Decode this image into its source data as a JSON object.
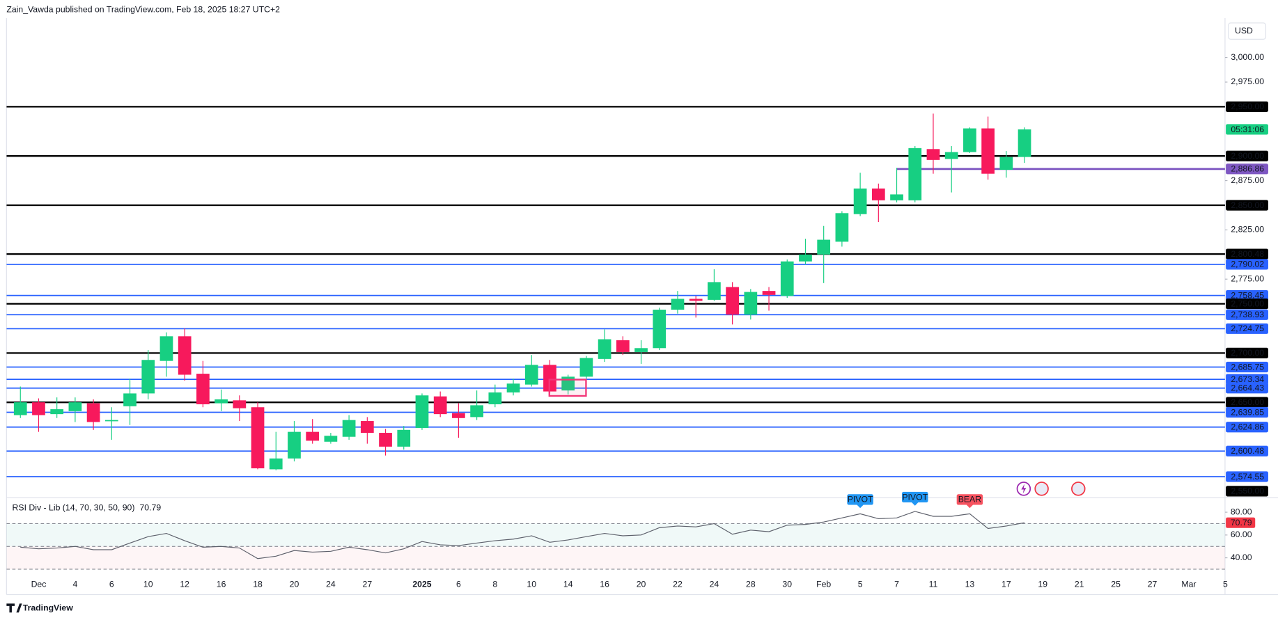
{
  "chart_data": {
    "type": "candlestick",
    "header": "Zain_Vawda published on TradingView.com, Feb 18, 2025 18:27 UTC+2",
    "currency": "USD",
    "brand": "TradingView",
    "countdown": "05:31:06",
    "up_color": "#17cf82",
    "down_color": "#f7195c",
    "categories": [
      null,
      "Dec",
      null,
      "4",
      null,
      "6",
      null,
      "10",
      null,
      "12",
      null,
      "16",
      null,
      "18",
      null,
      "20",
      null,
      "24",
      null,
      "27",
      null,
      null,
      "2025",
      null,
      "6",
      null,
      "8",
      null,
      "10",
      null,
      "14",
      null,
      "16",
      null,
      "20",
      null,
      "22",
      null,
      "24",
      null,
      "28",
      null,
      "30",
      null,
      "Feb",
      null,
      "5",
      null,
      "7",
      null,
      "11",
      null,
      "13",
      null,
      "17",
      null,
      "19",
      null,
      "21",
      null,
      "25",
      null,
      "27",
      null,
      "Mar",
      null,
      "5"
    ],
    "open": [
      2637,
      2650,
      2638,
      2641,
      2649,
      2631,
      2646,
      2659,
      2692,
      2717,
      2679,
      2649,
      2652,
      2645,
      2582,
      2593,
      2620,
      2610,
      2615,
      2631,
      2619,
      2605,
      2624,
      2656,
      2639,
      2635,
      2648,
      2660,
      2668,
      2688,
      2662,
      2676,
      2694,
      2713,
      2701,
      2705,
      2744,
      2755,
      2754,
      2767,
      2739,
      2763,
      2758,
      2793,
      2800,
      2813,
      2841,
      2867,
      2855,
      2855,
      2907,
      2897,
      2904,
      2928,
      2886,
      2899,
      null,
      null,
      null,
      null,
      null,
      null,
      null,
      null,
      null,
      null,
      null
    ],
    "high": [
      2666,
      2654,
      2655,
      2655,
      2653,
      2645,
      2674,
      2703,
      2721,
      2725,
      2692,
      2663,
      2657,
      2650,
      2620,
      2631,
      2633,
      2619,
      2637,
      2635,
      2623,
      2626,
      2659,
      2661,
      2649,
      2662,
      2668,
      2674,
      2698,
      2693,
      2678,
      2697,
      2724,
      2717,
      2713,
      2746,
      2763,
      2758,
      2785,
      2772,
      2765,
      2767,
      2795,
      2816,
      2829,
      2844,
      2883,
      2872,
      2888,
      2910,
      2943,
      2910,
      2929,
      2940,
      2905,
      2929,
      null,
      null,
      null,
      null,
      null,
      null,
      null,
      null,
      null,
      null,
      null
    ],
    "low": [
      2634,
      2620,
      2634,
      2630,
      2622,
      2612,
      2627,
      2653,
      2676,
      2672,
      2645,
      2641,
      2631,
      2582,
      2581,
      2590,
      2608,
      2608,
      2612,
      2608,
      2596,
      2602,
      2622,
      2635,
      2614,
      2632,
      2645,
      2657,
      2666,
      2659,
      2658,
      2674,
      2691,
      2698,
      2689,
      2703,
      2740,
      2736,
      2753,
      2729,
      2734,
      2743,
      2756,
      2790,
      2771,
      2808,
      2839,
      2833,
      2853,
      2853,
      2882,
      2863,
      2903,
      2876,
      2878,
      2893,
      null,
      null,
      null,
      null,
      null,
      null,
      null,
      null,
      null,
      null,
      null
    ],
    "close": [
      2650,
      2637,
      2643,
      2650,
      2630,
      2632,
      2659,
      2693,
      2717,
      2678,
      2648,
      2653,
      2644,
      2583,
      2593,
      2620,
      2611,
      2616,
      2632,
      2619,
      2605,
      2622,
      2657,
      2638,
      2634,
      2647,
      2660,
      2669,
      2688,
      2661,
      2676,
      2695,
      2714,
      2701,
      2705,
      2744,
      2755,
      2753,
      2772,
      2739,
      2762,
      2759,
      2793,
      2800,
      2815,
      2842,
      2867,
      2855,
      2861,
      2908,
      2896,
      2904,
      2928,
      2882,
      2899,
      2927,
      null,
      null,
      null,
      null,
      null,
      null,
      null,
      null,
      null,
      null,
      null
    ],
    "ylim": [
      2554,
      3040
    ],
    "yticks": [
      {
        "value": 3000,
        "label": "3,000.00"
      },
      {
        "value": 2975,
        "label": "2,975.00"
      },
      {
        "value": 2875,
        "label": "2,875.00"
      },
      {
        "value": 2825,
        "label": "2,825.00"
      },
      {
        "value": 2775,
        "label": "2,775.00"
      }
    ],
    "grid": false,
    "levels": [
      {
        "value": 2950,
        "label": "2,950.00",
        "color": "#000000"
      },
      {
        "value": 2900,
        "label": "2,900.00",
        "color": "#000000"
      },
      {
        "value": 2886.86,
        "label": "2,886.86",
        "color": "#7e57c2"
      },
      {
        "value": 2850,
        "label": "2,850.00",
        "color": "#000000"
      },
      {
        "value": 2800.48,
        "label": "2,800.48",
        "color": "#000000"
      },
      {
        "value": 2790.02,
        "label": "2,790.02",
        "color": "#2962ff"
      },
      {
        "value": 2758.45,
        "label": "2,758.45",
        "color": "#2962ff"
      },
      {
        "value": 2750,
        "label": "2,750.00",
        "color": "#000000"
      },
      {
        "value": 2738.93,
        "label": "2,738.93",
        "color": "#2962ff"
      },
      {
        "value": 2724.75,
        "label": "2,724.75",
        "color": "#2962ff"
      },
      {
        "value": 2700,
        "label": "2,700.00",
        "color": "#000000"
      },
      {
        "value": 2685.75,
        "label": "2,685.75",
        "color": "#2962ff"
      },
      {
        "value": 2673.34,
        "label": "2,673.34",
        "color": "#2962ff"
      },
      {
        "value": 2664.43,
        "label": "2,664.43",
        "color": "#2962ff"
      },
      {
        "value": 2650,
        "label": "2,650.00",
        "color": "#000000"
      },
      {
        "value": 2639.85,
        "label": "2,639.85",
        "color": "#2962ff"
      },
      {
        "value": 2624.86,
        "label": "2,624.86",
        "color": "#2962ff"
      },
      {
        "value": 2600.48,
        "label": "2,600.48",
        "color": "#2962ff"
      },
      {
        "value": 2574.55,
        "label": "2,574.55",
        "color": "#2962ff"
      },
      {
        "value": 2550,
        "label": "2,550.00",
        "color": "#000000"
      }
    ],
    "rsi": {
      "title": "RSI Div - Lib (14, 70, 30, 50, 90)",
      "value_label": "70.79",
      "color": "#5d606b",
      "label_color": "#f23645",
      "values": [
        49.3,
        47.9,
        48.6,
        50,
        47.1,
        47.1,
        52.9,
        58.6,
        61.4,
        55,
        49.3,
        50,
        48.6,
        39.3,
        41.4,
        46.4,
        45,
        45.7,
        49.3,
        47.1,
        44.3,
        47.9,
        54.3,
        51.4,
        50.7,
        52.9,
        55,
        56.4,
        59.3,
        53.6,
        55.7,
        58.6,
        61.4,
        59.3,
        60,
        66.4,
        67.9,
        67.1,
        70,
        60.7,
        64.3,
        62.9,
        68.6,
        69.3,
        71.4,
        75,
        78.6,
        74.3,
        75,
        80.7,
        76.4,
        76.4,
        78.6,
        65.7,
        67.9,
        70.79,
        null,
        null,
        null,
        null,
        null,
        null,
        null,
        null,
        null,
        null,
        null
      ],
      "ylim": [
        22,
        92
      ],
      "yticks": [
        {
          "value": 80,
          "label": "80.00"
        },
        {
          "value": 60,
          "label": "60.00"
        },
        {
          "value": 40,
          "label": "40.00"
        }
      ],
      "levels": [
        70,
        50,
        30
      ],
      "signals": [
        null,
        null,
        null,
        null,
        null,
        null,
        null,
        null,
        null,
        null,
        null,
        null,
        null,
        null,
        null,
        null,
        null,
        null,
        null,
        null,
        null,
        null,
        null,
        null,
        null,
        null,
        null,
        null,
        null,
        null,
        null,
        null,
        null,
        null,
        null,
        null,
        null,
        null,
        null,
        null,
        null,
        null,
        null,
        null,
        null,
        null,
        "PIVOT",
        null,
        null,
        "PIVOT",
        null,
        null,
        "BEAR",
        null,
        null,
        null,
        null,
        null,
        null,
        null,
        null,
        null,
        null,
        null,
        null,
        null,
        null
      ],
      "signal_colors": {
        "PIVOT": "#2196f3",
        "BEAR": "#f7525f"
      }
    }
  }
}
